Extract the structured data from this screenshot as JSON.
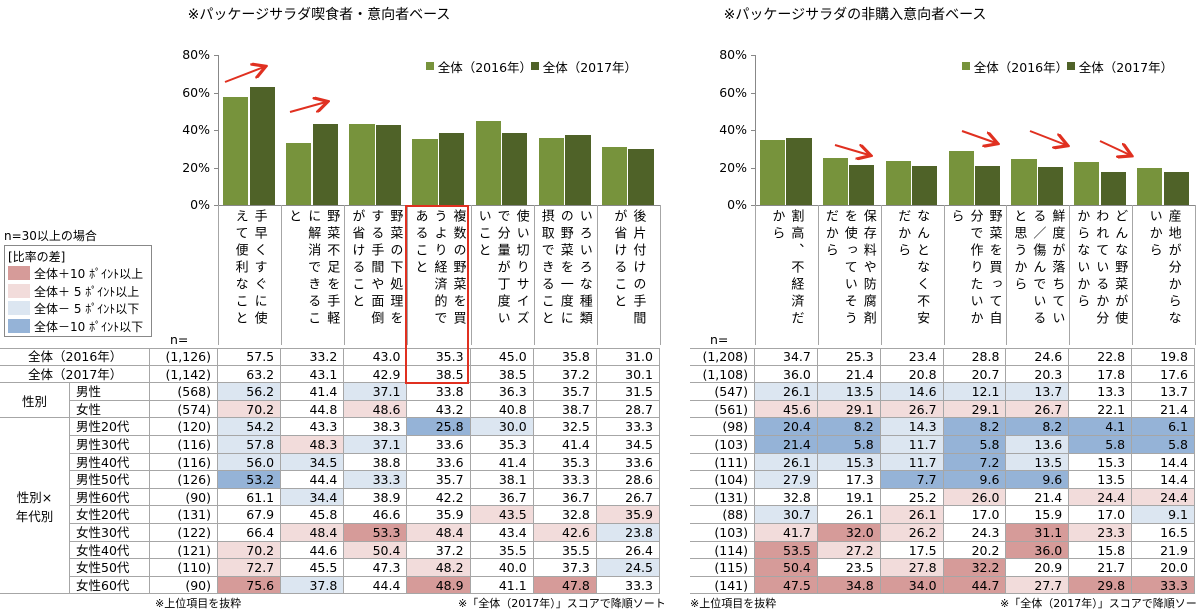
{
  "chart_data": [
    {
      "type": "bar",
      "title": "※パッケージサラダ喫食者・意向者ベース",
      "categories": [
        "手早くすぐに使えて便利なこと",
        "野菜不足を手軽に解消できること",
        "野菜の下処理をする手間や面倒が省けること",
        "複数の野菜を買うより経済的であること",
        "使い切りサイズで分量が丁度いいこと",
        "いろいろな種類の野菜を一度に摂取できること",
        "後片付けの手間が省けること"
      ],
      "series": [
        {
          "name": "全体（2016年）",
          "color": "#77933c",
          "values": [
            57.5,
            33.2,
            43.0,
            35.3,
            45.0,
            35.8,
            31.0
          ]
        },
        {
          "name": "全体（2017年）",
          "color": "#4f6228",
          "values": [
            63.2,
            43.1,
            42.9,
            38.5,
            38.5,
            37.2,
            30.1
          ]
        }
      ],
      "ylim": [
        0,
        80
      ],
      "yticks": [
        {
          "value": 0,
          "label": "0%"
        },
        {
          "value": 20,
          "label": "20%"
        },
        {
          "value": 40,
          "label": "40%"
        },
        {
          "value": 60,
          "label": "60%"
        },
        {
          "value": 80,
          "label": "80%"
        }
      ],
      "legend": "top",
      "grid": false
    },
    {
      "type": "bar",
      "title": "※パッケージサラダの非購入意向者ベース",
      "categories": [
        "割高、不経済だから",
        "保存料や防腐剤を使っていそうだから",
        "なんとなく不安だから",
        "野菜を買って自分で作りたいから",
        "鮮度が落ちている／傷んでいると思うから",
        "どんな野菜が使われているか分からないから",
        "産地が分からないから"
      ],
      "series": [
        {
          "name": "全体（2016年）",
          "color": "#77933c",
          "values": [
            34.7,
            25.3,
            23.4,
            28.8,
            24.6,
            22.8,
            19.8
          ]
        },
        {
          "name": "全体（2017年）",
          "color": "#4f6228",
          "values": [
            36.0,
            21.4,
            20.8,
            20.7,
            20.3,
            17.8,
            17.6
          ]
        }
      ],
      "ylim": [
        0,
        80
      ],
      "yticks": [
        {
          "value": 0,
          "label": "0%"
        },
        {
          "value": 20,
          "label": "20%"
        },
        {
          "value": 40,
          "label": "40%"
        },
        {
          "value": 60,
          "label": "60%"
        },
        {
          "value": 80,
          "label": "80%"
        }
      ],
      "legend": "top",
      "grid": false
    }
  ],
  "shade_legend": {
    "note": "n=30以上の場合",
    "title": "[比率の差]",
    "entries": [
      {
        "label": "全体＋10 ﾎﾟｲﾝﾄ以上",
        "threshold": 10,
        "color": "#d69b99"
      },
      {
        "label": "全体＋ 5 ﾎﾟｲﾝﾄ以上",
        "threshold": 5,
        "color": "#f2dcdb"
      },
      {
        "label": "全体－ 5 ﾎﾟｲﾝﾄ以下",
        "threshold": -5,
        "color": "#dce6f1"
      },
      {
        "label": "全体－10 ﾎﾟｲﾝﾄ以下",
        "threshold": -10,
        "color": "#95b3d7"
      }
    ]
  },
  "tables": [
    {
      "n_header": "n=",
      "notes": [
        "※上位項目を抜粋",
        "※「全体（2017年）」スコアで降順ソート"
      ],
      "sections": [
        {
          "rows": [
            {
              "label": "全体（2016年）",
              "n": "(1,126)",
              "cells": [
                "57.5",
                "33.2",
                "43.0",
                "35.3",
                "45.0",
                "35.8",
                "31.0"
              ]
            },
            {
              "label": "全体（2017年）",
              "n": "(1,142)",
              "cells": [
                "63.2",
                "43.1",
                "42.9",
                "38.5",
                "38.5",
                "37.2",
                "30.1"
              ]
            }
          ]
        },
        {
          "label": "性別",
          "rows": [
            {
              "label": "男性",
              "n": "(568)",
              "cells": [
                "56.2",
                "41.4",
                "37.1",
                "33.8",
                "36.3",
                "35.7",
                "31.5"
              ]
            },
            {
              "label": "女性",
              "n": "(574)",
              "cells": [
                "70.2",
                "44.8",
                "48.6",
                "43.2",
                "40.8",
                "38.7",
                "28.7"
              ]
            }
          ]
        },
        {
          "label": "性別×\n年代別",
          "rows": [
            {
              "label": "男性20代",
              "n": "(120)",
              "cells": [
                "54.2",
                "43.3",
                "38.3",
                "25.8",
                "30.0",
                "32.5",
                "33.3"
              ]
            },
            {
              "label": "男性30代",
              "n": "(116)",
              "cells": [
                "57.8",
                "48.3",
                "37.1",
                "33.6",
                "35.3",
                "41.4",
                "34.5"
              ]
            },
            {
              "label": "男性40代",
              "n": "(116)",
              "cells": [
                "56.0",
                "34.5",
                "38.8",
                "33.6",
                "41.4",
                "35.3",
                "33.6"
              ]
            },
            {
              "label": "男性50代",
              "n": "(126)",
              "cells": [
                "53.2",
                "44.4",
                "33.3",
                "35.7",
                "38.1",
                "33.3",
                "28.6"
              ]
            },
            {
              "label": "男性60代",
              "n": "(90)",
              "cells": [
                "61.1",
                "34.4",
                "38.9",
                "42.2",
                "36.7",
                "36.7",
                "26.7"
              ]
            },
            {
              "label": "女性20代",
              "n": "(131)",
              "cells": [
                "67.9",
                "45.8",
                "46.6",
                "35.9",
                "43.5",
                "32.8",
                "35.9"
              ]
            },
            {
              "label": "女性30代",
              "n": "(122)",
              "cells": [
                "66.4",
                "48.4",
                "53.3",
                "48.4",
                "43.4",
                "42.6",
                "23.8"
              ]
            },
            {
              "label": "女性40代",
              "n": "(121)",
              "cells": [
                "70.2",
                "44.6",
                "50.4",
                "37.2",
                "35.5",
                "35.5",
                "26.4"
              ]
            },
            {
              "label": "女性50代",
              "n": "(110)",
              "cells": [
                "72.7",
                "45.5",
                "47.3",
                "48.2",
                "40.0",
                "37.3",
                "24.5"
              ]
            },
            {
              "label": "女性60代",
              "n": "(90)",
              "cells": [
                "75.6",
                "37.8",
                "44.4",
                "48.9",
                "41.1",
                "47.8",
                "33.3"
              ]
            }
          ]
        }
      ]
    },
    {
      "n_header": "n=",
      "notes": [
        "※上位項目を抜粋",
        "※「全体（2017年）」スコアで降順ソート"
      ],
      "sections": [
        {
          "rows": [
            {
              "n": "(1,208)",
              "cells": [
                "34.7",
                "25.3",
                "23.4",
                "28.8",
                "24.6",
                "22.8",
                "19.8"
              ]
            },
            {
              "n": "(1,108)",
              "cells": [
                "36.0",
                "21.4",
                "20.8",
                "20.7",
                "20.3",
                "17.8",
                "17.6"
              ]
            }
          ]
        },
        {
          "rows": [
            {
              "n": "(547)",
              "cells": [
                "26.1",
                "13.5",
                "14.6",
                "12.1",
                "13.7",
                "13.3",
                "13.7"
              ]
            },
            {
              "n": "(561)",
              "cells": [
                "45.6",
                "29.1",
                "26.7",
                "29.1",
                "26.7",
                "22.1",
                "21.4"
              ]
            }
          ]
        },
        {
          "rows": [
            {
              "n": "(98)",
              "cells": [
                "20.4",
                "8.2",
                "14.3",
                "8.2",
                "8.2",
                "4.1",
                "6.1"
              ]
            },
            {
              "n": "(103)",
              "cells": [
                "21.4",
                "5.8",
                "11.7",
                "5.8",
                "13.6",
                "5.8",
                "5.8"
              ]
            },
            {
              "n": "(111)",
              "cells": [
                "26.1",
                "15.3",
                "11.7",
                "7.2",
                "13.5",
                "15.3",
                "14.4"
              ]
            },
            {
              "n": "(104)",
              "cells": [
                "27.9",
                "17.3",
                "7.7",
                "9.6",
                "9.6",
                "13.5",
                "14.4"
              ]
            },
            {
              "n": "(131)",
              "cells": [
                "32.8",
                "19.1",
                "25.2",
                "26.0",
                "21.4",
                "24.4",
                "24.4"
              ]
            },
            {
              "n": "(88)",
              "cells": [
                "30.7",
                "26.1",
                "26.1",
                "17.0",
                "15.9",
                "17.0",
                "9.1"
              ]
            },
            {
              "n": "(103)",
              "cells": [
                "41.7",
                "32.0",
                "26.2",
                "24.3",
                "31.1",
                "23.3",
                "16.5"
              ]
            },
            {
              "n": "(114)",
              "cells": [
                "53.5",
                "27.2",
                "17.5",
                "20.2",
                "36.0",
                "15.8",
                "21.9"
              ]
            },
            {
              "n": "(115)",
              "cells": [
                "50.4",
                "23.5",
                "27.8",
                "32.2",
                "20.9",
                "21.7",
                "20.0"
              ]
            },
            {
              "n": "(141)",
              "cells": [
                "47.5",
                "34.8",
                "34.0",
                "44.7",
                "27.7",
                "29.8",
                "33.3"
              ]
            }
          ]
        }
      ]
    }
  ]
}
